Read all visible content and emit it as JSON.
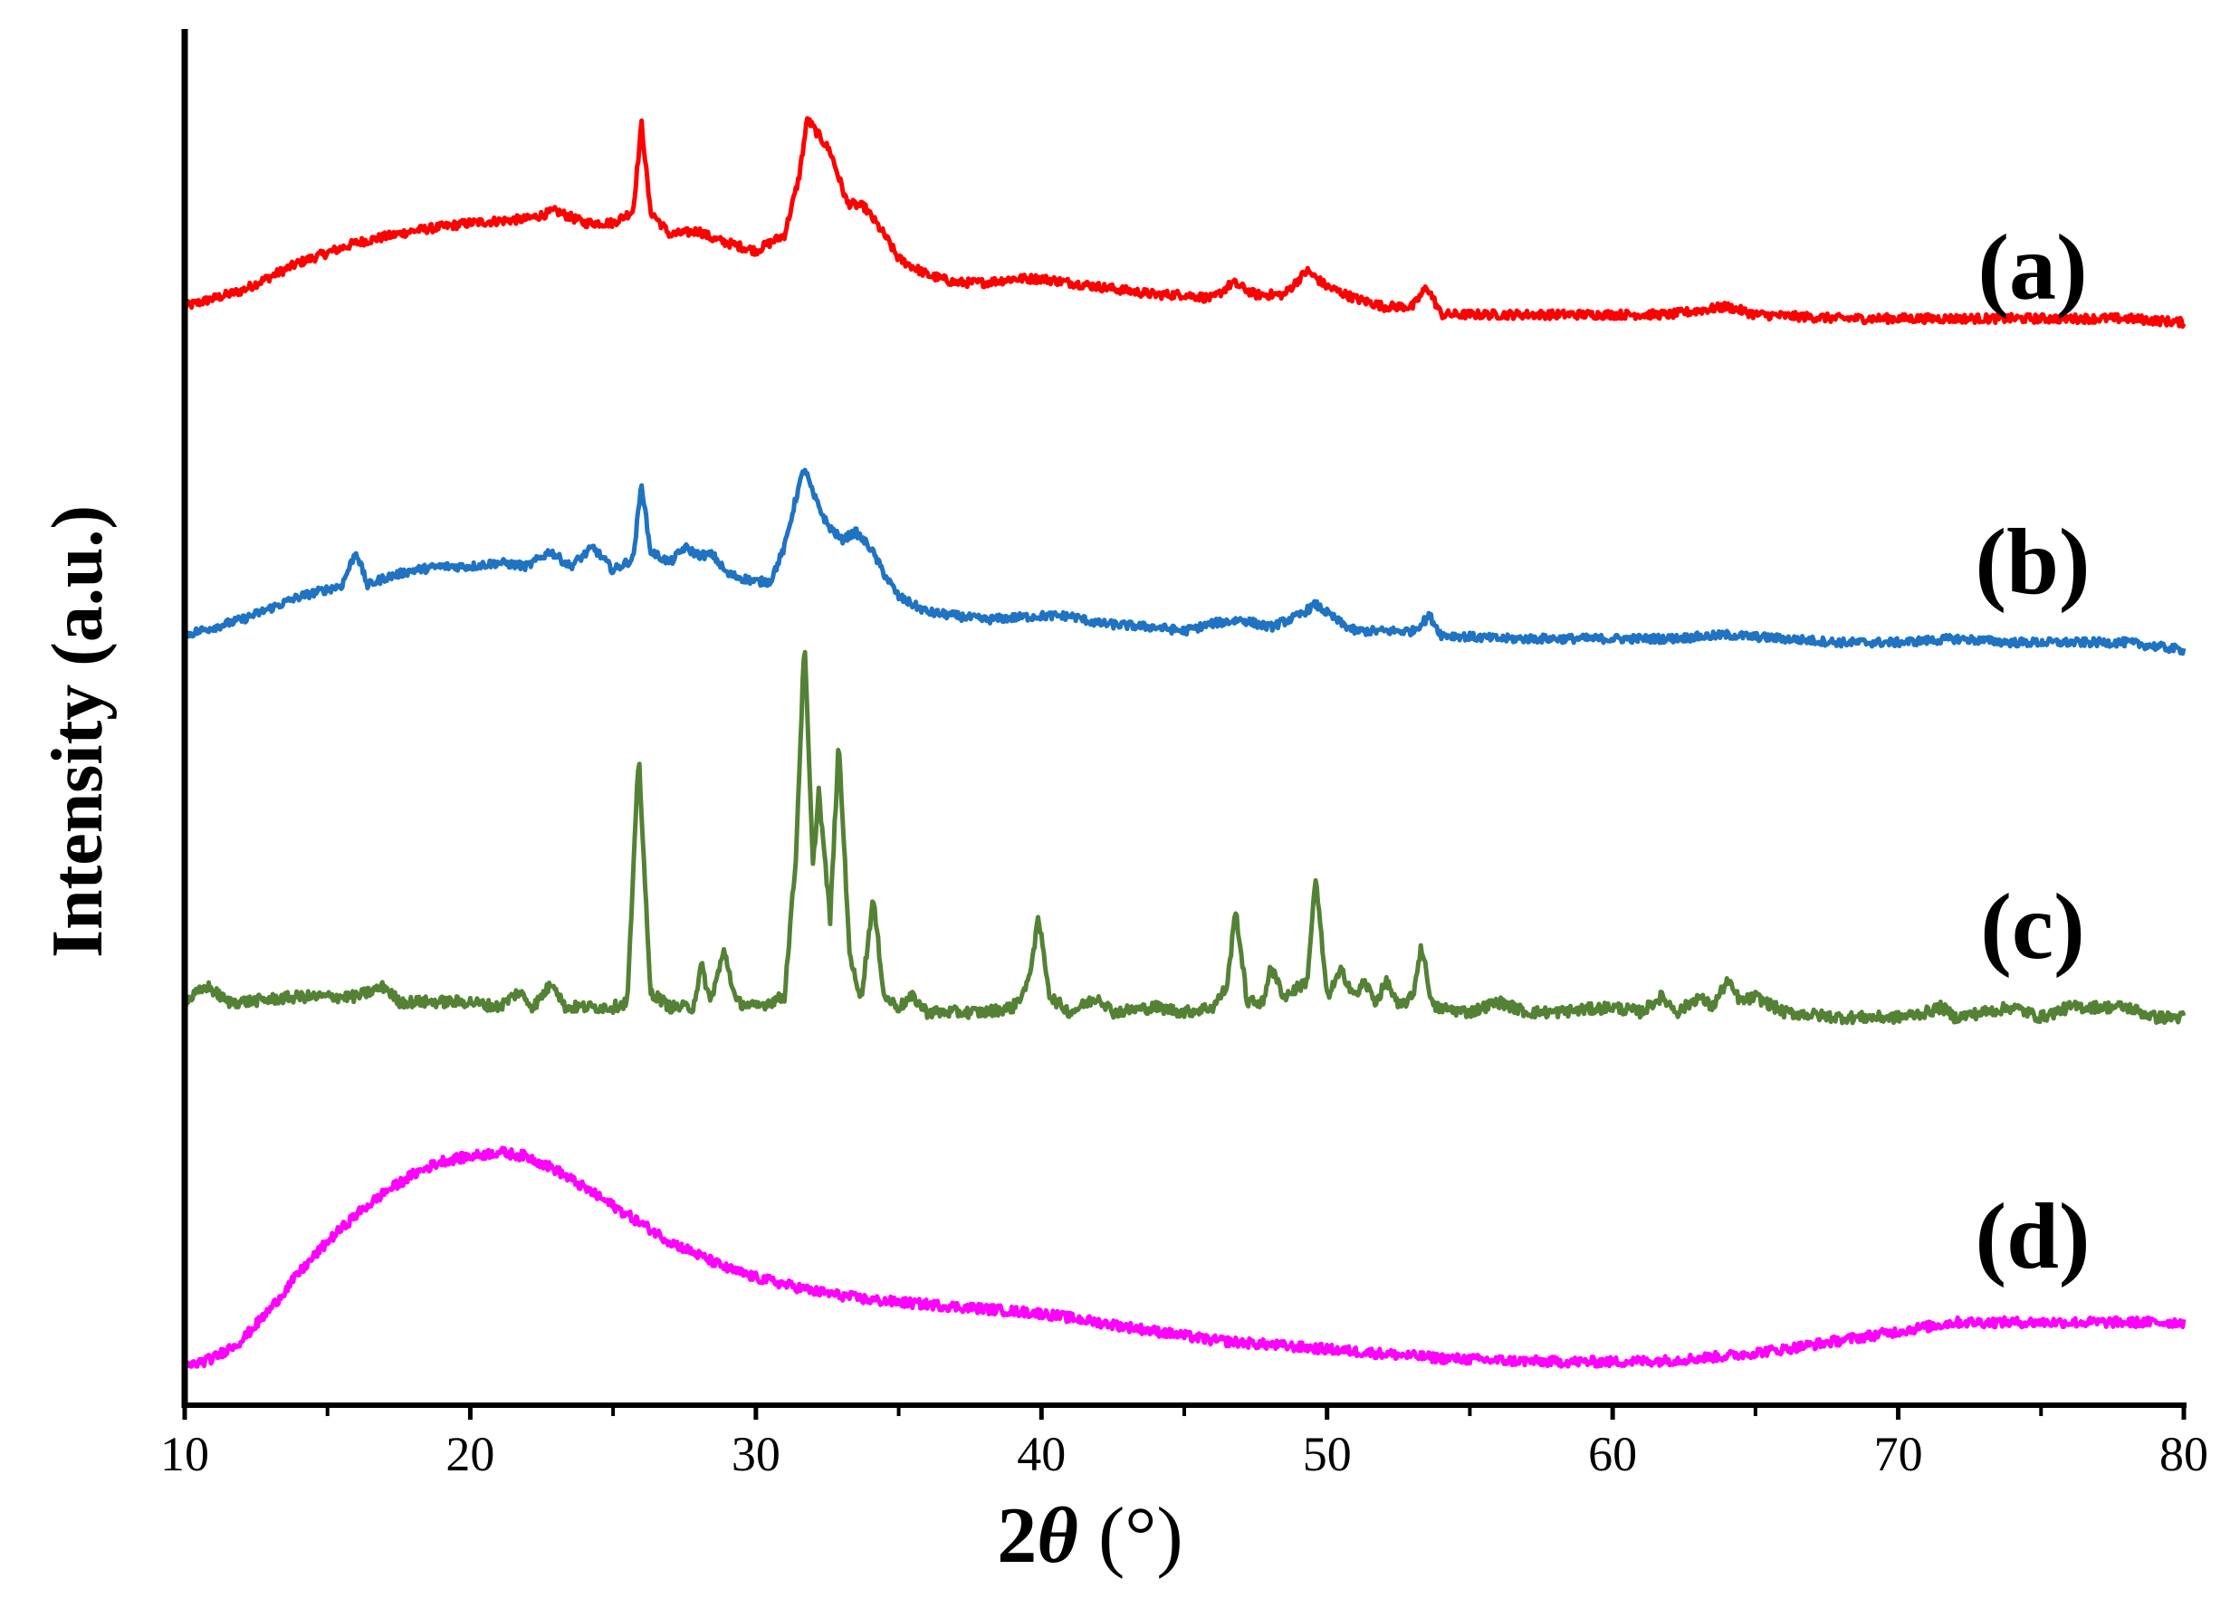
{
  "chart_data": {
    "type": "line",
    "title": "",
    "xlabel": {
      "prefix": "2",
      "symbol": "θ",
      "unit": " (°)"
    },
    "ylabel": "Intensity (a.u.)",
    "xlim": [
      10,
      80
    ],
    "xticks": [
      "10",
      "20",
      "30",
      "40",
      "50",
      "60",
      "70",
      "80"
    ],
    "y_ticks_shown": false,
    "grid": false,
    "legend": "none (series labelled at right end)",
    "series": [
      {
        "name": "(a)",
        "color": "#ff0000",
        "points": [
          [
            10,
            0.06
          ],
          [
            12,
            0.1
          ],
          [
            14,
            0.17
          ],
          [
            16,
            0.22
          ],
          [
            18,
            0.25
          ],
          [
            20,
            0.27
          ],
          [
            22,
            0.28
          ],
          [
            23,
            0.3
          ],
          [
            24,
            0.27
          ],
          [
            25,
            0.27
          ],
          [
            25.7,
            0.3
          ],
          [
            26,
            0.52
          ],
          [
            26.3,
            0.3
          ],
          [
            27,
            0.24
          ],
          [
            28,
            0.25
          ],
          [
            28.5,
            0.23
          ],
          [
            29,
            0.22
          ],
          [
            30,
            0.2
          ],
          [
            31,
            0.24
          ],
          [
            31.5,
            0.38
          ],
          [
            31.8,
            0.53
          ],
          [
            32.2,
            0.49
          ],
          [
            32.6,
            0.45
          ],
          [
            33.2,
            0.32
          ],
          [
            33.8,
            0.31
          ],
          [
            34.5,
            0.24
          ],
          [
            35,
            0.18
          ],
          [
            36,
            0.14
          ],
          [
            37,
            0.12
          ],
          [
            38,
            0.12
          ],
          [
            39,
            0.13
          ],
          [
            40,
            0.13
          ],
          [
            41,
            0.12
          ],
          [
            42,
            0.11
          ],
          [
            43,
            0.1
          ],
          [
            44,
            0.09
          ],
          [
            45,
            0.09
          ],
          [
            46,
            0.08
          ],
          [
            46.7,
            0.12
          ],
          [
            47.5,
            0.09
          ],
          [
            48.5,
            0.09
          ],
          [
            49.3,
            0.15
          ],
          [
            50,
            0.11
          ],
          [
            51,
            0.08
          ],
          [
            52,
            0.06
          ],
          [
            53,
            0.06
          ],
          [
            53.5,
            0.11
          ],
          [
            54,
            0.04
          ],
          [
            56,
            0.04
          ],
          [
            58,
            0.04
          ],
          [
            60,
            0.04
          ],
          [
            62,
            0.04
          ],
          [
            64,
            0.06
          ],
          [
            65,
            0.04
          ],
          [
            68,
            0.03
          ],
          [
            70,
            0.03
          ],
          [
            72,
            0.03
          ],
          [
            74,
            0.03
          ],
          [
            76,
            0.03
          ],
          [
            78,
            0.03
          ],
          [
            80,
            0.02
          ]
        ]
      },
      {
        "name": "(b)",
        "color": "#1f73c2",
        "points": [
          [
            10,
            0.04
          ],
          [
            12,
            0.08
          ],
          [
            14,
            0.14
          ],
          [
            15.5,
            0.17
          ],
          [
            16,
            0.26
          ],
          [
            16.4,
            0.17
          ],
          [
            17,
            0.19
          ],
          [
            18,
            0.21
          ],
          [
            19,
            0.22
          ],
          [
            20,
            0.22
          ],
          [
            21,
            0.23
          ],
          [
            22,
            0.22
          ],
          [
            22.8,
            0.26
          ],
          [
            23.5,
            0.22
          ],
          [
            24.3,
            0.27
          ],
          [
            25,
            0.21
          ],
          [
            25.7,
            0.24
          ],
          [
            26,
            0.44
          ],
          [
            26.3,
            0.26
          ],
          [
            27,
            0.23
          ],
          [
            27.5,
            0.27
          ],
          [
            28,
            0.25
          ],
          [
            28.5,
            0.25
          ],
          [
            29,
            0.2
          ],
          [
            30,
            0.18
          ],
          [
            30.5,
            0.18
          ],
          [
            31,
            0.27
          ],
          [
            31.4,
            0.4
          ],
          [
            31.7,
            0.48
          ],
          [
            32,
            0.41
          ],
          [
            32.5,
            0.33
          ],
          [
            33,
            0.29
          ],
          [
            33.5,
            0.31
          ],
          [
            34,
            0.27
          ],
          [
            34.5,
            0.2
          ],
          [
            35,
            0.14
          ],
          [
            36,
            0.1
          ],
          [
            38,
            0.08
          ],
          [
            40,
            0.09
          ],
          [
            41,
            0.09
          ],
          [
            42,
            0.07
          ],
          [
            44,
            0.06
          ],
          [
            45,
            0.05
          ],
          [
            46,
            0.07
          ],
          [
            47,
            0.08
          ],
          [
            48,
            0.06
          ],
          [
            49,
            0.09
          ],
          [
            49.6,
            0.12
          ],
          [
            50.5,
            0.07
          ],
          [
            51,
            0.05
          ],
          [
            52,
            0.05
          ],
          [
            53,
            0.05
          ],
          [
            53.6,
            0.09
          ],
          [
            54,
            0.04
          ],
          [
            56,
            0.03
          ],
          [
            58,
            0.03
          ],
          [
            60,
            0.03
          ],
          [
            62,
            0.03
          ],
          [
            64,
            0.04
          ],
          [
            66,
            0.03
          ],
          [
            68,
            0.02
          ],
          [
            70,
            0.02
          ],
          [
            72,
            0.03
          ],
          [
            74,
            0.02
          ],
          [
            76,
            0.02
          ],
          [
            78,
            0.02
          ],
          [
            80,
            0.0
          ]
        ]
      },
      {
        "name": "(c)",
        "color": "#548235",
        "points": [
          [
            10,
            0.02
          ],
          [
            10.8,
            0.05
          ],
          [
            11.5,
            0.02
          ],
          [
            12,
            0.02
          ],
          [
            14,
            0.03
          ],
          [
            16,
            0.03
          ],
          [
            17,
            0.05
          ],
          [
            17.5,
            0.02
          ],
          [
            19,
            0.02
          ],
          [
            20,
            0.02
          ],
          [
            21,
            0.01
          ],
          [
            21.7,
            0.04
          ],
          [
            22.2,
            0.01
          ],
          [
            22.9,
            0.06
          ],
          [
            23.3,
            0.01
          ],
          [
            24,
            0.01
          ],
          [
            25,
            0.01
          ],
          [
            25.5,
            0.02
          ],
          [
            25.9,
            0.5
          ],
          [
            26.3,
            0.04
          ],
          [
            27,
            0.01
          ],
          [
            27.8,
            0.01
          ],
          [
            28.1,
            0.09
          ],
          [
            28.4,
            0.02
          ],
          [
            28.9,
            0.12
          ],
          [
            29.3,
            0.02
          ],
          [
            30,
            0.01
          ],
          [
            31,
            0.03
          ],
          [
            31.4,
            0.3
          ],
          [
            31.7,
            0.72
          ],
          [
            32.0,
            0.28
          ],
          [
            32.2,
            0.43
          ],
          [
            32.6,
            0.18
          ],
          [
            32.9,
            0.52
          ],
          [
            33.3,
            0.1
          ],
          [
            33.7,
            0.03
          ],
          [
            34.1,
            0.22
          ],
          [
            34.5,
            0.03
          ],
          [
            35,
            0.01
          ],
          [
            35.5,
            0.03
          ],
          [
            36,
            0.0
          ],
          [
            38,
            0.0
          ],
          [
            39,
            0.01
          ],
          [
            39.5,
            0.05
          ],
          [
            39.9,
            0.18
          ],
          [
            40.3,
            0.03
          ],
          [
            41,
            0.0
          ],
          [
            42,
            0.03
          ],
          [
            42.5,
            0.0
          ],
          [
            44,
            0.01
          ],
          [
            45,
            0.0
          ],
          [
            46,
            0.01
          ],
          [
            46.5,
            0.05
          ],
          [
            46.8,
            0.2
          ],
          [
            47.2,
            0.02
          ],
          [
            47.8,
            0.02
          ],
          [
            48,
            0.09
          ],
          [
            48.5,
            0.03
          ],
          [
            49.3,
            0.06
          ],
          [
            49.6,
            0.26
          ],
          [
            50,
            0.03
          ],
          [
            50.5,
            0.08
          ],
          [
            51,
            0.03
          ],
          [
            51.3,
            0.06
          ],
          [
            51.7,
            0.02
          ],
          [
            52.1,
            0.06
          ],
          [
            52.5,
            0.01
          ],
          [
            53,
            0.03
          ],
          [
            53.3,
            0.13
          ],
          [
            53.7,
            0.01
          ],
          [
            55,
            0.0
          ],
          [
            56,
            0.02
          ],
          [
            57,
            0.0
          ],
          [
            58,
            0.0
          ],
          [
            60,
            0.01
          ],
          [
            61,
            0.0
          ],
          [
            61.7,
            0.03
          ],
          [
            62.3,
            0.0
          ],
          [
            63,
            0.03
          ],
          [
            63.5,
            0.01
          ],
          [
            64,
            0.06
          ],
          [
            64.5,
            0.02
          ],
          [
            65,
            0.03
          ],
          [
            66,
            0.0
          ],
          [
            68,
            -0.01
          ],
          [
            70,
            -0.01
          ],
          [
            71,
            0.0
          ],
          [
            71.5,
            0.01
          ],
          [
            72,
            -0.01
          ],
          [
            74,
            0.01
          ],
          [
            75,
            -0.01
          ],
          [
            76,
            0.01
          ],
          [
            77,
            0.01
          ],
          [
            78,
            0.01
          ],
          [
            79,
            -0.01
          ],
          [
            80,
            -0.01
          ]
        ]
      },
      {
        "name": "(d)",
        "color": "#ff00ff",
        "points": [
          [
            10,
            0.0
          ],
          [
            11,
            0.02
          ],
          [
            12,
            0.06
          ],
          [
            13,
            0.13
          ],
          [
            14,
            0.21
          ],
          [
            15,
            0.28
          ],
          [
            16,
            0.34
          ],
          [
            17,
            0.39
          ],
          [
            18,
            0.43
          ],
          [
            19,
            0.46
          ],
          [
            20,
            0.47
          ],
          [
            21,
            0.48
          ],
          [
            22,
            0.47
          ],
          [
            23,
            0.44
          ],
          [
            24,
            0.4
          ],
          [
            25,
            0.36
          ],
          [
            26,
            0.32
          ],
          [
            27,
            0.28
          ],
          [
            28,
            0.25
          ],
          [
            29,
            0.22
          ],
          [
            30,
            0.2
          ],
          [
            32,
            0.17
          ],
          [
            34,
            0.15
          ],
          [
            36,
            0.14
          ],
          [
            38,
            0.13
          ],
          [
            40,
            0.12
          ],
          [
            42,
            0.1
          ],
          [
            44,
            0.08
          ],
          [
            46,
            0.06
          ],
          [
            48,
            0.05
          ],
          [
            50,
            0.04
          ],
          [
            52,
            0.03
          ],
          [
            54,
            0.02
          ],
          [
            56,
            0.015
          ],
          [
            58,
            0.012
          ],
          [
            60,
            0.012
          ],
          [
            62,
            0.015
          ],
          [
            64,
            0.025
          ],
          [
            66,
            0.04
          ],
          [
            68,
            0.06
          ],
          [
            70,
            0.08
          ],
          [
            72,
            0.1
          ],
          [
            74,
            0.1
          ],
          [
            76,
            0.1
          ],
          [
            78,
            0.1
          ],
          [
            80,
            0.1
          ]
        ]
      }
    ]
  }
}
